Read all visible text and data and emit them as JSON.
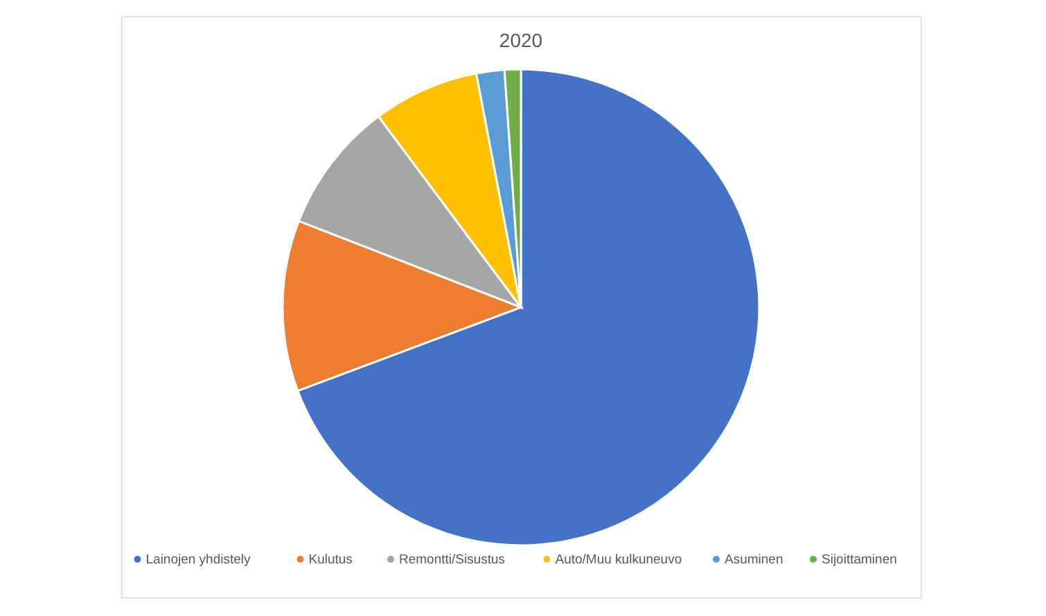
{
  "chart_data": {
    "type": "pie",
    "title": "2020",
    "categories": [
      "Lainojen yhdistely",
      "Kulutus",
      "Remontti/Sisustus",
      "Auto/Muu kulkuneuvo",
      "Asuminen",
      "Sijoittaminen"
    ],
    "values": [
      69.3,
      11.6,
      8.9,
      7.2,
      1.9,
      1.1
    ],
    "colors": [
      "#4472c4",
      "#ed7d31",
      "#a5a5a5",
      "#ffc000",
      "#5b9bd5",
      "#70ad47"
    ],
    "legend": "bottom"
  }
}
